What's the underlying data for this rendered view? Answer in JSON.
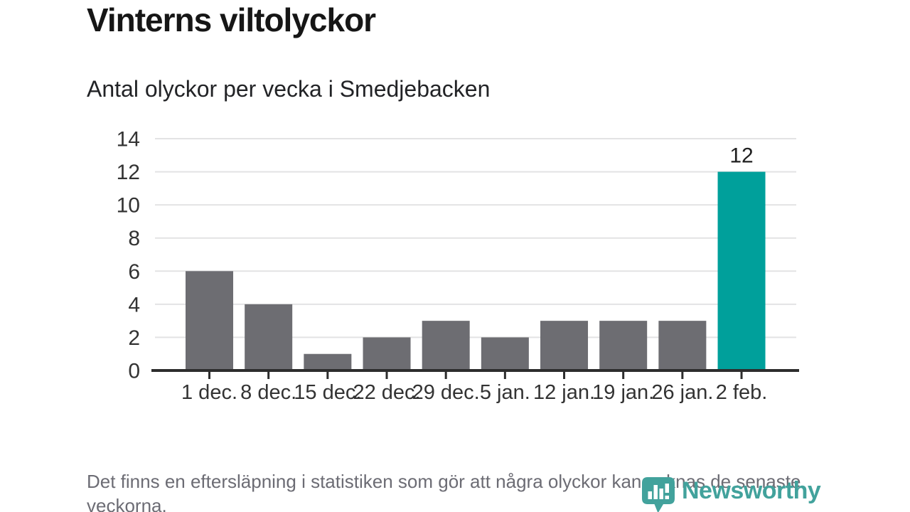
{
  "header": {
    "title": "Vinterns viltolyckor",
    "subtitle": "Antal olyckor per vecka i Smedjebacken"
  },
  "chart_data": {
    "type": "bar",
    "title": "Vinterns viltolyckor",
    "subtitle": "Antal olyckor per vecka i Smedjebacken",
    "categories": [
      "1 dec.",
      "8 dec.",
      "15 dec.",
      "22 dec.",
      "29 dec.",
      "5 jan.",
      "12 jan.",
      "19 jan.",
      "26 jan.",
      "2 feb."
    ],
    "values": [
      6,
      4,
      1,
      2,
      3,
      2,
      3,
      3,
      3,
      12
    ],
    "yticks": [
      0,
      2,
      4,
      6,
      8,
      10,
      12,
      14
    ],
    "ylim": [
      0,
      14
    ],
    "xlabel": "",
    "ylabel": "",
    "grid": "horizontal",
    "legend": "none",
    "bar_color": "#6d6d72",
    "highlight": {
      "index": 9,
      "color": "#00a09b",
      "value_label": "12",
      "show_value_label": true
    },
    "axis_color": "#2d2d2d",
    "gridline_color": "#e3e3e4",
    "tick_label_color": "#333333",
    "value_label_color": "#1f1f1f"
  },
  "footer": {
    "note": "Det finns en eftersläpning i statistiken som gör att några olyckor kan saknas de senaste veckorna."
  },
  "logo": {
    "wordmark": "Newsworthy",
    "color": "#42a29c",
    "icon": "newsworthy-bubble-chart-icon"
  }
}
